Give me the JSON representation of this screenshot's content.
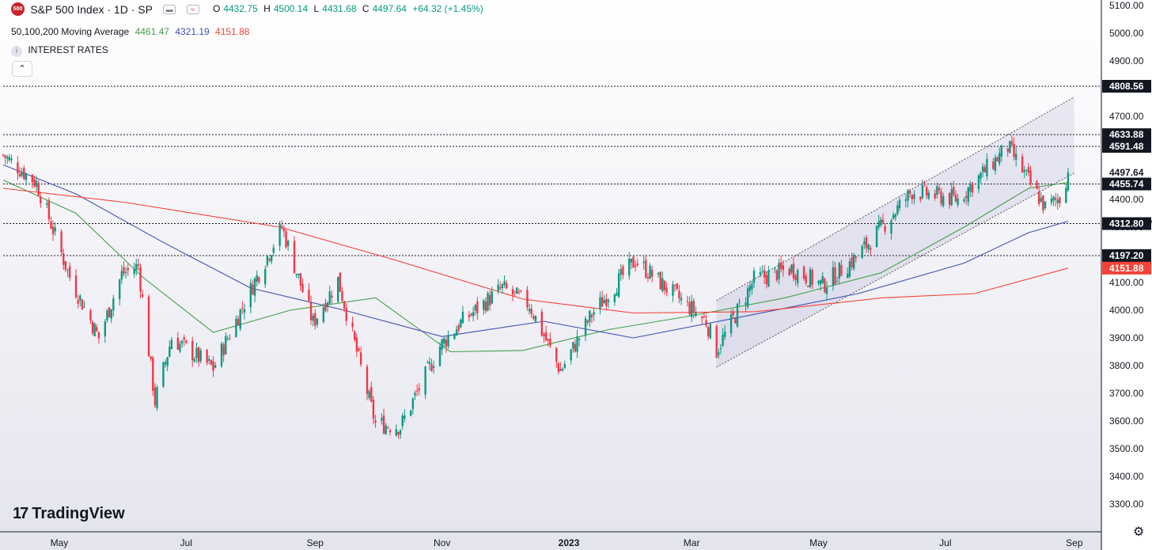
{
  "header": {
    "symbol_badge": "500",
    "title": "S&P 500 Index · 1D · SP",
    "ohlc": {
      "o_label": "O",
      "o": "4432.75",
      "h_label": "H",
      "h": "4500.14",
      "l_label": "L",
      "l": "4431.68",
      "c_label": "C",
      "c": "4497.64",
      "change": "+64.32 (+1.45%)"
    },
    "ma_label": "50,100,200 Moving Average",
    "ma_values": [
      "4461.47",
      "4321.19",
      "4151.88"
    ],
    "indicator": "INTEREST RATES",
    "collapse_icon": "chevron-up-icon"
  },
  "branding": {
    "logo_text": "TradingView",
    "logo_icon": "tradingview-logo-icon"
  },
  "settings_icon": "gear-icon",
  "colors": {
    "up": "#089981",
    "down": "#f23645",
    "ma50": "#43a047",
    "ma100": "#3f51b5",
    "ma200": "#f44336",
    "text": "#131722",
    "channel": "#9591c9"
  },
  "chart_data": {
    "type": "candlestick",
    "yaxis": {
      "ticks": [
        3300,
        3400,
        3500,
        3600,
        3700,
        3800,
        3900,
        4000,
        4100,
        4200,
        4300,
        4400,
        4500,
        4600,
        4700,
        4800,
        4900,
        5000,
        5100
      ],
      "range": [
        3200,
        5120
      ]
    },
    "xaxis": {
      "ticks": [
        {
          "label": "May",
          "date": "2022-05-01"
        },
        {
          "label": "Jul",
          "date": "2022-07-01"
        },
        {
          "label": "Sep",
          "date": "2022-09-01"
        },
        {
          "label": "Nov",
          "date": "2022-11-01"
        },
        {
          "label": "2023",
          "date": "2023-01-01"
        },
        {
          "label": "Mar",
          "date": "2023-03-01"
        },
        {
          "label": "May",
          "date": "2023-05-01"
        },
        {
          "label": "Jul",
          "date": "2023-07-01"
        },
        {
          "label": "Sep",
          "date": "2023-09-01"
        }
      ],
      "range": [
        "2022-04-04",
        "2023-09-14"
      ]
    },
    "price_anchors": [
      [
        "2022-04-04",
        4560
      ],
      [
        "2022-04-20",
        4460
      ],
      [
        "2022-05-06",
        4120
      ],
      [
        "2022-05-20",
        3900
      ],
      [
        "2022-05-31",
        4130
      ],
      [
        "2022-06-08",
        4160
      ],
      [
        "2022-06-16",
        3670
      ],
      [
        "2022-06-24",
        3900
      ],
      [
        "2022-07-14",
        3790
      ],
      [
        "2022-08-02",
        4090
      ],
      [
        "2022-08-16",
        4300
      ],
      [
        "2022-08-31",
        3955
      ],
      [
        "2022-09-12",
        4110
      ],
      [
        "2022-09-30",
        3590
      ],
      [
        "2022-10-12",
        3580
      ],
      [
        "2022-10-31",
        3870
      ],
      [
        "2022-11-10",
        3955
      ],
      [
        "2022-11-30",
        4080
      ],
      [
        "2022-12-13",
        4020
      ],
      [
        "2022-12-28",
        3780
      ],
      [
        "2023-01-12",
        3985
      ],
      [
        "2023-02-02",
        4180
      ],
      [
        "2023-02-17",
        4080
      ],
      [
        "2023-03-08",
        3960
      ],
      [
        "2023-03-13",
        3855
      ],
      [
        "2023-03-31",
        4110
      ],
      [
        "2023-04-18",
        4150
      ],
      [
        "2023-05-03",
        4090
      ],
      [
        "2023-05-19",
        4190
      ],
      [
        "2023-06-15",
        4430
      ],
      [
        "2023-07-07",
        4400
      ],
      [
        "2023-07-31",
        4590
      ],
      [
        "2023-08-18",
        4370
      ],
      [
        "2023-08-25",
        4405
      ],
      [
        "2023-08-29",
        4497.64
      ]
    ],
    "series": [
      {
        "name": "MA 50",
        "last": 4461.47,
        "values": [
          [
            [
              "2022-04-04",
              4470
            ],
            [
              "2022-05-09",
              4350
            ],
            [
              "2022-06-10",
              4120
            ],
            [
              "2022-07-14",
              3920
            ],
            [
              "2022-08-20",
              4000
            ],
            [
              "2022-09-30",
              4045
            ],
            [
              "2022-11-05",
              3850
            ],
            [
              "2022-12-10",
              3855
            ],
            [
              "2023-01-20",
              3930
            ],
            [
              "2023-03-01",
              3980
            ],
            [
              "2023-04-15",
              4045
            ],
            [
              "2023-05-31",
              4135
            ],
            [
              "2023-07-10",
              4300
            ],
            [
              "2023-08-10",
              4440
            ],
            [
              "2023-08-29",
              4461.47
            ]
          ]
        ]
      },
      {
        "name": "MA 100",
        "last": 4321.19,
        "values": [
          [
            [
              "2022-04-04",
              4525
            ],
            [
              "2022-05-09",
              4420
            ],
            [
              "2022-06-20",
              4245
            ],
            [
              "2022-08-01",
              4080
            ],
            [
              "2022-09-15",
              4000
            ],
            [
              "2022-11-01",
              3905
            ],
            [
              "2022-12-20",
              3960
            ],
            [
              "2023-02-01",
              3900
            ],
            [
              "2023-03-31",
              3985
            ],
            [
              "2023-05-20",
              4060
            ],
            [
              "2023-07-10",
              4170
            ],
            [
              "2023-08-10",
              4280
            ],
            [
              "2023-08-29",
              4321.19
            ]
          ]
        ]
      },
      {
        "name": "MA 200",
        "last": 4151.88,
        "values": [
          [
            [
              "2022-04-04",
              4440
            ],
            [
              "2022-06-01",
              4390
            ],
            [
              "2022-08-15",
              4300
            ],
            [
              "2022-10-10",
              4180
            ],
            [
              "2022-12-10",
              4040
            ],
            [
              "2023-02-01",
              3990
            ],
            [
              "2023-04-01",
              3995
            ],
            [
              "2023-06-01",
              4045
            ],
            [
              "2023-07-15",
              4060
            ],
            [
              "2023-08-29",
              4151.88
            ]
          ]
        ]
      }
    ],
    "hlines": [
      4808.56,
      4633.88,
      4591.48,
      4455.74,
      4312.8,
      4197.2
    ],
    "channel": {
      "lower": [
        [
          "2023-03-13",
          3795
        ],
        [
          "2023-09-01",
          4495
        ]
      ],
      "upper": [
        [
          "2023-03-13",
          4035
        ],
        [
          "2023-09-01",
          4770
        ]
      ]
    },
    "price_labels": [
      {
        "value": 4808.56,
        "label": "4808.56",
        "style": "line"
      },
      {
        "value": 4633.88,
        "label": "4633.88",
        "style": "line"
      },
      {
        "value": 4591.48,
        "label": "4591.48",
        "style": "line"
      },
      {
        "value": 4497.64,
        "label": "4497.64",
        "style": "last"
      },
      {
        "value": 4455.74,
        "label": "4455.74",
        "style": "line"
      },
      {
        "value": 4321.19,
        "label": "4321.19",
        "style": "ma100"
      },
      {
        "value": 4312.8,
        "label": "4312.80",
        "style": "line"
      },
      {
        "value": 4197.2,
        "label": "4197.20",
        "style": "line"
      },
      {
        "value": 4151.88,
        "label": "4151.88",
        "style": "ma200"
      }
    ]
  }
}
